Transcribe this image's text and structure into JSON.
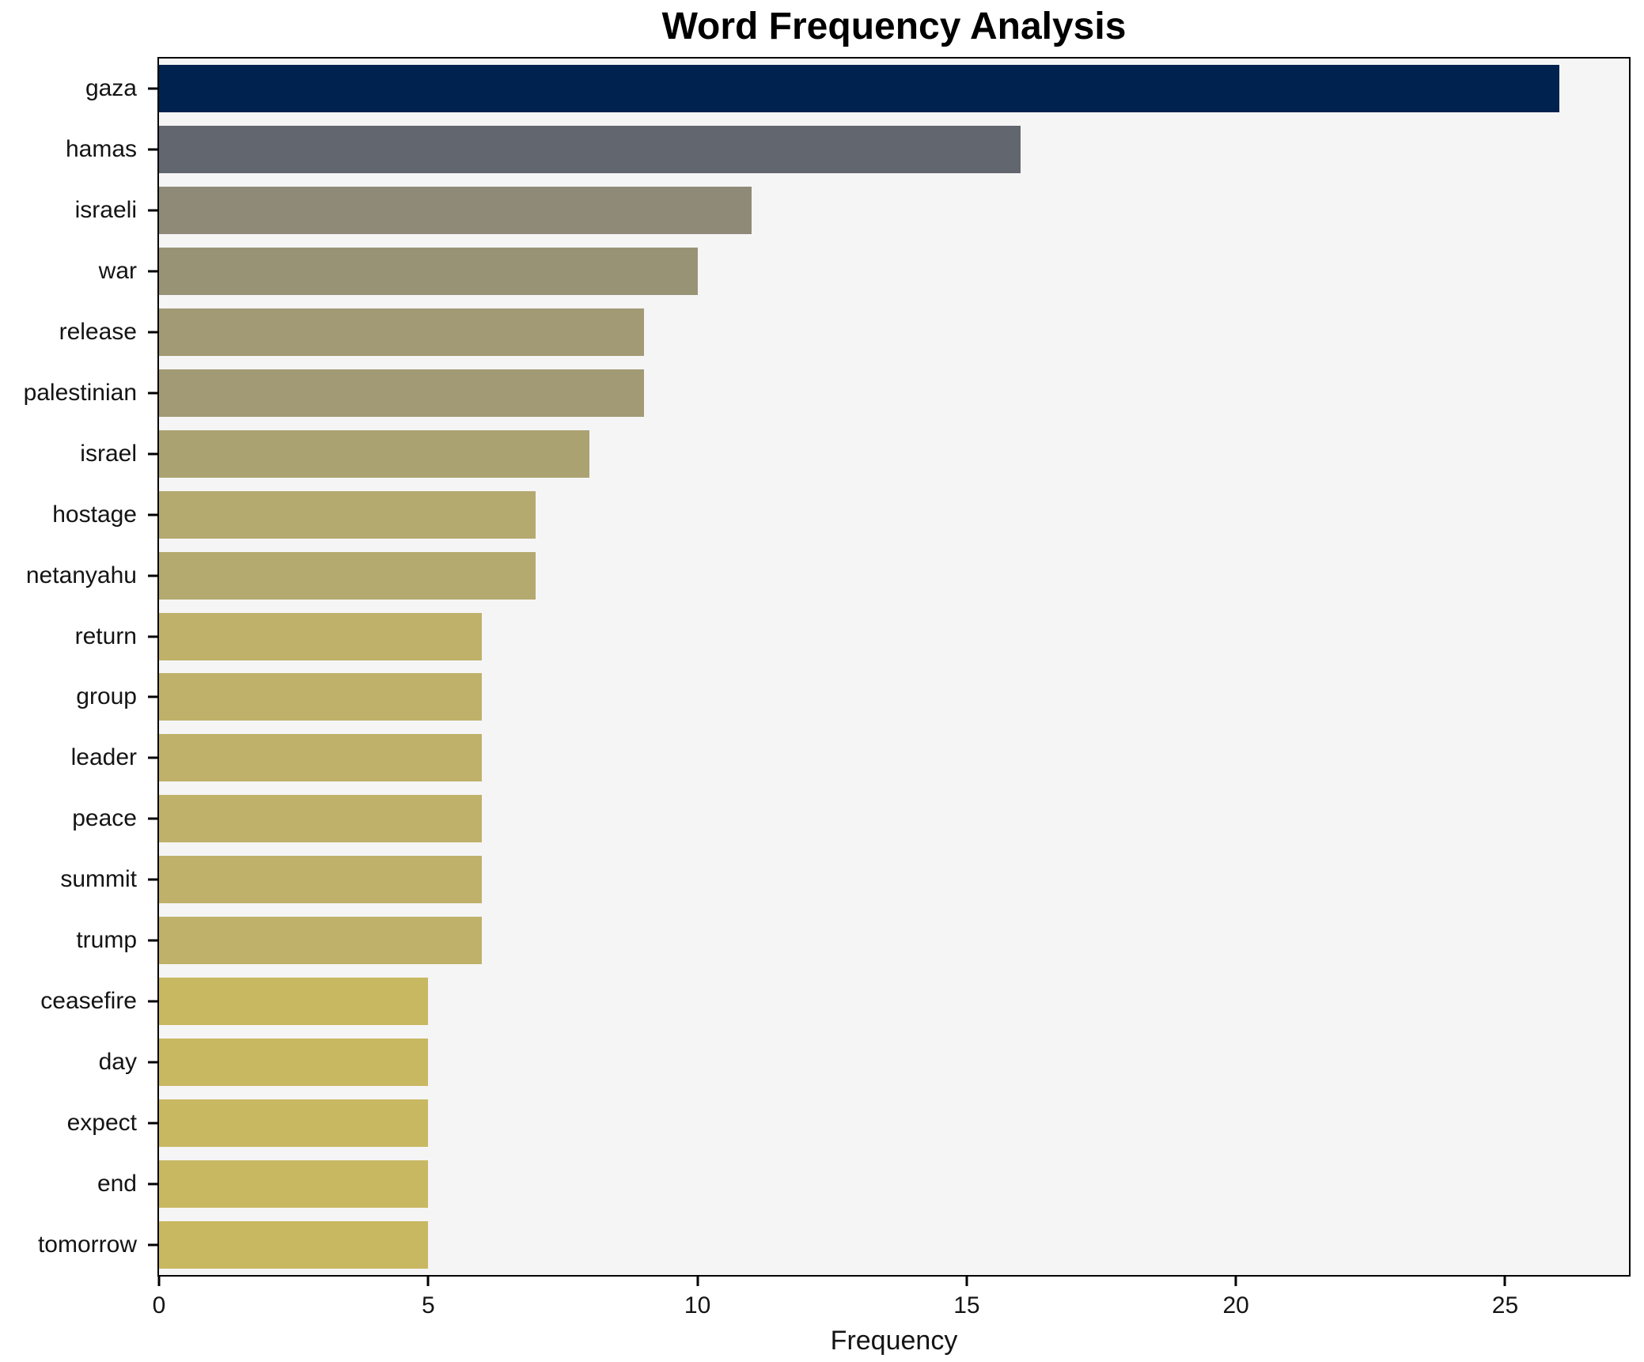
{
  "figure": {
    "background": "#ffffff",
    "plot_background": "#f5f5f6",
    "spine_color": "#000000",
    "text_color": "#141414"
  },
  "chart_data": {
    "type": "bar",
    "orientation": "horizontal",
    "title": "Word Frequency Analysis",
    "xlabel": "Frequency",
    "ylabel": "",
    "categories": [
      "gaza",
      "hamas",
      "israeli",
      "war",
      "release",
      "palestinian",
      "israel",
      "hostage",
      "netanyahu",
      "return",
      "group",
      "leader",
      "peace",
      "summit",
      "trump",
      "ceasefire",
      "day",
      "expect",
      "end",
      "tomorrow"
    ],
    "values": [
      26,
      16,
      11,
      10,
      9,
      9,
      8,
      7,
      7,
      6,
      6,
      6,
      6,
      6,
      6,
      5,
      5,
      5,
      5,
      5
    ],
    "bar_colors": [
      "#00224e",
      "#62666f",
      "#8f8a77",
      "#999376",
      "#a29a74",
      "#a29a74",
      "#aba272",
      "#b4a96e",
      "#b4a96e",
      "#bfb169",
      "#bfb169",
      "#bfb169",
      "#bfb169",
      "#bfb169",
      "#bfb169",
      "#c9b862",
      "#c9b862",
      "#c9b862",
      "#c9b862",
      "#c9b862"
    ],
    "xlim": [
      0,
      27.3
    ],
    "xticks": [
      0,
      5,
      10,
      15,
      20,
      25
    ],
    "grid": false,
    "legend": null,
    "bar_relative_height": 0.78
  }
}
